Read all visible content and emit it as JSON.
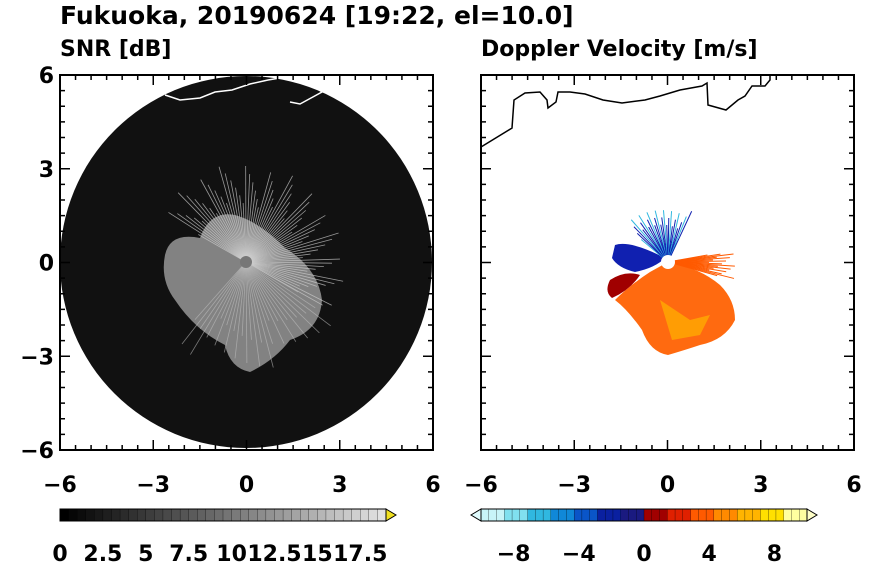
{
  "header": {
    "title": "Fukuoka, 20190624 [19:22, el=10.0]"
  },
  "chart_data": [
    {
      "type": "heatmap",
      "title": "SNR [dB]",
      "xlim": [
        -6,
        6
      ],
      "ylim": [
        -6,
        6
      ],
      "xticks": [
        "−6",
        "−3",
        "0",
        "3",
        "6"
      ],
      "yticks": [
        "6",
        "3",
        "0",
        "−3",
        "−6"
      ],
      "colorbar": {
        "labels": [
          "0",
          "2.5",
          "5",
          "7.5",
          "10",
          "12.5",
          "15",
          "17.5"
        ],
        "min": 0,
        "max": 19,
        "extend": "max",
        "low_color": "#000000",
        "high_color": "#d8d8d8",
        "extend_color": "#f0e020"
      },
      "radar_range_km": 6,
      "echo_color": "#9a9a9a",
      "background_color": "#111111"
    },
    {
      "type": "heatmap",
      "title": "Doppler Velocity [m/s]",
      "xlim": [
        -6,
        6
      ],
      "ylim": [
        -6,
        6
      ],
      "xticks": [
        "−6",
        "−3",
        "0",
        "3",
        "6"
      ],
      "yticks": [],
      "colorbar": {
        "labels": [
          "−8",
          "−4",
          "0",
          "4",
          "8"
        ],
        "min": -10,
        "max": 10,
        "extend": "both",
        "negative_colors": [
          "#c8f4f8",
          "#80e0ef",
          "#30b8e0",
          "#1088d8",
          "#0a55c8",
          "#0a20a0",
          "#1a1a80"
        ],
        "positive_colors": [
          "#a00000",
          "#e02000",
          "#ff5a00",
          "#ff8a00",
          "#ffb400",
          "#ffe000",
          "#ffffa0"
        ]
      },
      "echo_colors": {
        "approaching": "#1020b0",
        "receding": "#ff6a10"
      }
    }
  ]
}
